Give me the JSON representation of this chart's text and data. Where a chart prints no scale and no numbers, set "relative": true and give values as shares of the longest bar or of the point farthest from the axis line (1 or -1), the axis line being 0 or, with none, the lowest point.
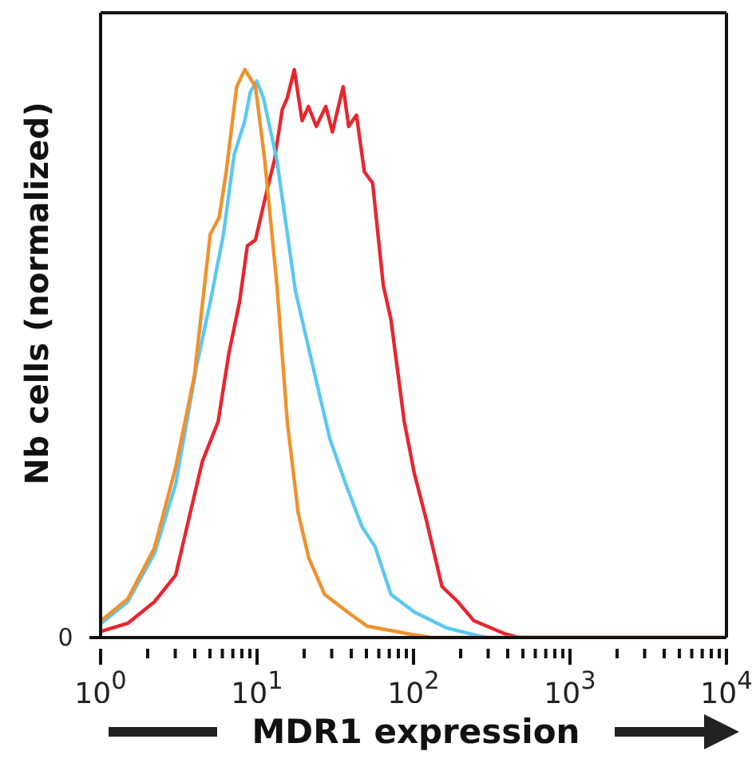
{
  "chart_data": {
    "type": "line",
    "relative": true,
    "xlabel": "MDR1 expression",
    "ylabel": "Nb cells (normalized)",
    "log": "x",
    "marker": "none",
    "line_style": "solid",
    "xlim": [
      1,
      10000
    ],
    "xticks": [
      {
        "value": 1,
        "label": "10$^{0}$"
      },
      {
        "value": 2,
        "label": null
      },
      {
        "value": 3,
        "label": null
      },
      {
        "value": 4,
        "label": null
      },
      {
        "value": 5,
        "label": null
      },
      {
        "value": 6,
        "label": null
      },
      {
        "value": 7,
        "label": null
      },
      {
        "value": 8,
        "label": null
      },
      {
        "value": 9,
        "label": null
      },
      {
        "value": 10,
        "label": "10$^{1}$"
      },
      {
        "value": 20,
        "label": null
      },
      {
        "value": 30,
        "label": null
      },
      {
        "value": 40,
        "label": null
      },
      {
        "value": 50,
        "label": null
      },
      {
        "value": 60,
        "label": null
      },
      {
        "value": 70,
        "label": null
      },
      {
        "value": 80,
        "label": null
      },
      {
        "value": 90,
        "label": null
      },
      {
        "value": 100,
        "label": "10$^{2}$"
      },
      {
        "value": 200,
        "label": null
      },
      {
        "value": 300,
        "label": null
      },
      {
        "value": 400,
        "label": null
      },
      {
        "value": 500,
        "label": null
      },
      {
        "value": 600,
        "label": null
      },
      {
        "value": 700,
        "label": null
      },
      {
        "value": 800,
        "label": null
      },
      {
        "value": 900,
        "label": null
      },
      {
        "value": 1000,
        "label": "10$^{3}$"
      },
      {
        "value": 2000,
        "label": null
      },
      {
        "value": 3000,
        "label": null
      },
      {
        "value": 4000,
        "label": null
      },
      {
        "value": 5000,
        "label": null
      },
      {
        "value": 6000,
        "label": null
      },
      {
        "value": 7000,
        "label": null
      },
      {
        "value": 8000,
        "label": null
      },
      {
        "value": 9000,
        "label": null
      },
      {
        "value": 10000,
        "label": "10$^{4}$"
      }
    ],
    "annotations": [
      "0"
    ],
    "series": [
      {
        "color": "#e8252f",
        "x": [
          1.01,
          1.49,
          2.21,
          3.02,
          3.53,
          4.47,
          5.64,
          6.6,
          7.72,
          8.67,
          9.77,
          11.4,
          12.9,
          14.5,
          15.6,
          17.3,
          19.4,
          21.3,
          23.9,
          27.5,
          30.3,
          35.5,
          38.5,
          43.2,
          48.5,
          54.8,
          64.1,
          71.7,
          87.3,
          101,
          120,
          152,
          192,
          242,
          389,
          470,
          10000
        ],
        "values": [
          0.011,
          0.025,
          0.063,
          0.11,
          0.19,
          0.31,
          0.38,
          0.5,
          0.59,
          0.69,
          0.7,
          0.78,
          0.84,
          0.93,
          0.95,
          1,
          0.91,
          0.935,
          0.9,
          0.935,
          0.89,
          0.97,
          0.9,
          0.92,
          0.82,
          0.8,
          0.62,
          0.56,
          0.38,
          0.29,
          0.21,
          0.09,
          0.063,
          0.03,
          0.006,
          0,
          0
        ]
      },
      {
        "color": "#5bc8ef",
        "x": [
          1.01,
          1.49,
          2.21,
          3.02,
          4.12,
          5.02,
          6.1,
          7.14,
          8.35,
          9.05,
          9.94,
          10.98,
          13.4,
          17.6,
          22.2,
          29.2,
          36.9,
          46.9,
          56.8,
          71.7,
          101,
          163,
          242,
          294,
          10000
        ],
        "values": [
          0.025,
          0.063,
          0.148,
          0.27,
          0.48,
          0.59,
          0.71,
          0.85,
          0.91,
          0.96,
          0.98,
          0.95,
          0.84,
          0.61,
          0.49,
          0.35,
          0.27,
          0.195,
          0.16,
          0.076,
          0.045,
          0.017,
          0.005,
          0,
          0
        ]
      },
      {
        "color": "#f0912d",
        "x": [
          1.01,
          1.49,
          2.21,
          3.02,
          3.97,
          5.02,
          5.73,
          6.35,
          7.41,
          8.35,
          9.77,
          11.2,
          13.4,
          15.6,
          18.3,
          21.4,
          27,
          40,
          50.6,
          94.8,
          130,
          10000
        ],
        "values": [
          0.03,
          0.068,
          0.158,
          0.3,
          0.46,
          0.71,
          0.74,
          0.82,
          0.97,
          1,
          0.97,
          0.84,
          0.62,
          0.38,
          0.22,
          0.14,
          0.076,
          0.04,
          0.02,
          0.006,
          0,
          0
        ]
      }
    ]
  }
}
